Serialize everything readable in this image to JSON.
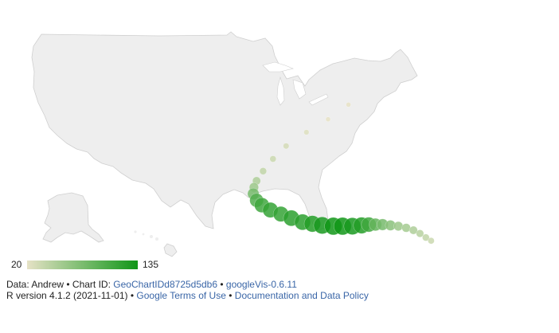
{
  "chart_data": {
    "type": "geo-bubble",
    "region": "US",
    "colors": {
      "land": "#eeeeee",
      "border": "#cfcfcf",
      "color_min": "#e6e2c6",
      "color_max": "#109618",
      "background": "#ffffff"
    },
    "color_axis": {
      "min": 20,
      "max": 135
    },
    "size_range": [
      20,
      135
    ],
    "points": [
      {
        "lat": 40.6,
        "lon": -77.0,
        "value": 20
      },
      {
        "lat": 38.8,
        "lon": -80.1,
        "value": 20
      },
      {
        "lat": 37.2,
        "lon": -83.4,
        "value": 25
      },
      {
        "lat": 35.5,
        "lon": -86.5,
        "value": 30
      },
      {
        "lat": 33.9,
        "lon": -88.5,
        "value": 35
      },
      {
        "lat": 32.4,
        "lon": -90.0,
        "value": 40
      },
      {
        "lat": 31.2,
        "lon": -91.0,
        "value": 50
      },
      {
        "lat": 30.4,
        "lon": -91.4,
        "value": 60
      },
      {
        "lat": 29.6,
        "lon": -91.5,
        "value": 80
      },
      {
        "lat": 28.8,
        "lon": -91.0,
        "value": 100
      },
      {
        "lat": 28.2,
        "lon": -90.2,
        "value": 110
      },
      {
        "lat": 27.6,
        "lon": -88.9,
        "value": 115
      },
      {
        "lat": 27.1,
        "lon": -87.3,
        "value": 115
      },
      {
        "lat": 26.6,
        "lon": -85.7,
        "value": 120
      },
      {
        "lat": 26.1,
        "lon": -84.0,
        "value": 120
      },
      {
        "lat": 25.9,
        "lon": -82.5,
        "value": 125
      },
      {
        "lat": 25.7,
        "lon": -81.0,
        "value": 130
      },
      {
        "lat": 25.6,
        "lon": -79.3,
        "value": 135
      },
      {
        "lat": 25.6,
        "lon": -77.9,
        "value": 135
      },
      {
        "lat": 25.6,
        "lon": -76.4,
        "value": 130
      },
      {
        "lat": 25.7,
        "lon": -75.0,
        "value": 125
      },
      {
        "lat": 25.8,
        "lon": -73.9,
        "value": 110
      },
      {
        "lat": 25.8,
        "lon": -72.9,
        "value": 90
      },
      {
        "lat": 25.8,
        "lon": -71.8,
        "value": 80
      },
      {
        "lat": 25.7,
        "lon": -70.6,
        "value": 70
      },
      {
        "lat": 25.6,
        "lon": -69.4,
        "value": 60
      },
      {
        "lat": 25.4,
        "lon": -68.2,
        "value": 55
      },
      {
        "lat": 25.1,
        "lon": -67.1,
        "value": 50
      },
      {
        "lat": 24.7,
        "lon": -66.1,
        "value": 45
      },
      {
        "lat": 24.2,
        "lon": -65.2,
        "value": 40
      },
      {
        "lat": 23.8,
        "lon": -64.4,
        "value": 35
      }
    ]
  },
  "legend": {
    "min_label": "20",
    "max_label": "135"
  },
  "footer": {
    "line1_prefix": "Data: Andrew • Chart ID: ",
    "chart_id": "GeoChartIDd8725d5db6",
    "sep1": " • ",
    "googlevis": "googleVis-0.6.11",
    "line2_prefix": "R version 4.1.2 (2021-11-01) • ",
    "terms": "Google Terms of Use",
    "sep2": " • ",
    "policy": "Documentation and Data Policy"
  }
}
